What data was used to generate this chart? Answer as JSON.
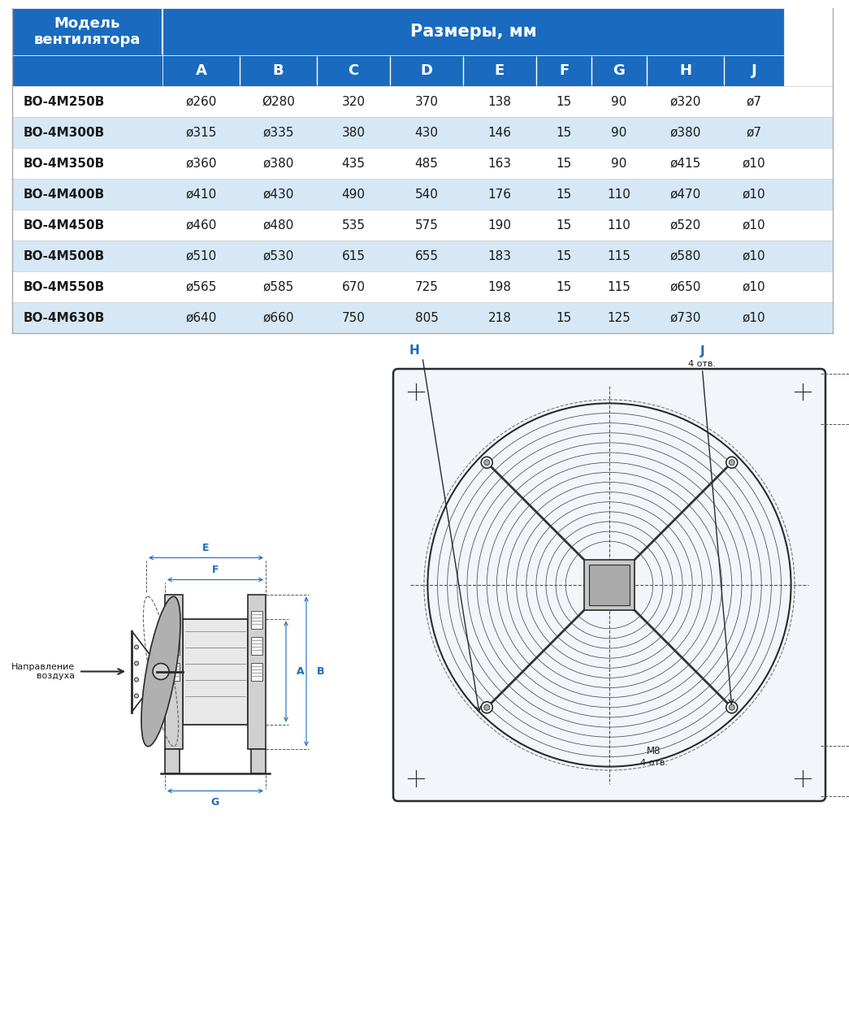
{
  "header_bg": "#1A6BBF",
  "header_text_color": "#FFFFFF",
  "row_even_bg": "#FFFFFF",
  "row_odd_bg": "#D6E8F5",
  "text_color": "#1A1A1A",
  "title1": "Модель\nвентилятора",
  "title2": "Размеры, мм",
  "col_headers": [
    "A",
    "B",
    "C",
    "D",
    "E",
    "F",
    "G",
    "H",
    "J"
  ],
  "rows": [
    [
      "ВО-4М250В",
      "ø260",
      "Ø280",
      "320",
      "370",
      "138",
      "15",
      "90",
      "ø320",
      "ø7"
    ],
    [
      "ВО-4М300В",
      "ø315",
      "ø335",
      "380",
      "430",
      "146",
      "15",
      "90",
      "ø380",
      "ø7"
    ],
    [
      "ВО-4М350В",
      "ø360",
      "ø380",
      "435",
      "485",
      "163",
      "15",
      "90",
      "ø415",
      "ø10"
    ],
    [
      "ВО-4М400В",
      "ø410",
      "ø430",
      "490",
      "540",
      "176",
      "15",
      "110",
      "ø470",
      "ø10"
    ],
    [
      "ВО-4М450В",
      "ø460",
      "ø480",
      "535",
      "575",
      "190",
      "15",
      "110",
      "ø520",
      "ø10"
    ],
    [
      "ВО-4М500В",
      "ø510",
      "ø530",
      "615",
      "655",
      "183",
      "15",
      "115",
      "ø580",
      "ø10"
    ],
    [
      "ВО-4М550В",
      "ø565",
      "ø585",
      "670",
      "725",
      "198",
      "15",
      "115",
      "ø650",
      "ø10"
    ],
    [
      "ВО-4М630В",
      "ø640",
      "ø660",
      "750",
      "805",
      "218",
      "15",
      "125",
      "ø730",
      "ø10"
    ]
  ],
  "line_color": "#2A2A2A",
  "dim_color": "#1A6BBF",
  "bg_color": "#FFFFFF"
}
